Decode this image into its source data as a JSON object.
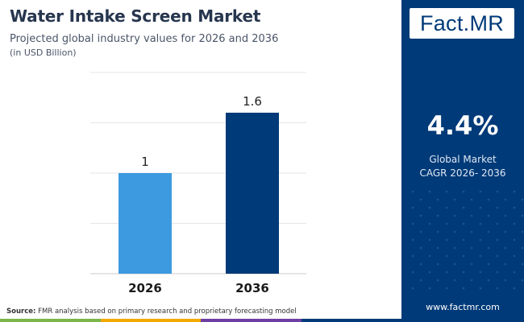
{
  "header": {
    "title": "Water Intake Screen Market",
    "subtitle": "Projected global industry values for 2026 and 2036",
    "unit_note": "(in USD Billion)"
  },
  "chart_data": {
    "type": "bar",
    "title": "Water Intake Screen Market",
    "categories": [
      "2026",
      "2036"
    ],
    "values": [
      1,
      1.6
    ],
    "value_labels": [
      "1",
      "1.6"
    ],
    "bar_colors": [
      "#3d9ae0",
      "#003a78"
    ],
    "ylim": [
      0,
      2
    ],
    "grid": true,
    "xlabel": "",
    "ylabel": ""
  },
  "sidebar": {
    "logo_text": "Fact.MR",
    "cagr_value": "4.4%",
    "cagr_label_line1": "Global Market",
    "cagr_label_line2": "CAGR 2026- 2036",
    "website": "www.factmr.com"
  },
  "footer": {
    "source_label": "Source:",
    "source_text": " FMR analysis based on primary research and proprietary forecasting model"
  },
  "colors": {
    "primary": "#003a78",
    "accent": "#3d9ae0",
    "strip": [
      "#7ab648",
      "#f2a900",
      "#6e3fa3",
      "#003a78"
    ]
  }
}
